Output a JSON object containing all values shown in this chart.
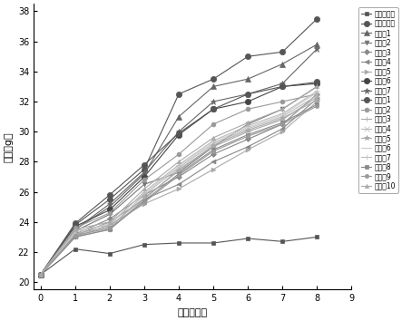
{
  "title": "",
  "xlabel": "时间（周）",
  "ylabel": "体重（g）",
  "xlim": [
    -0.2,
    9
  ],
  "ylim": [
    19.5,
    38.5
  ],
  "xticks": [
    0,
    1,
    2,
    3,
    4,
    5,
    6,
    7,
    8,
    9
  ],
  "yticks": [
    20,
    22,
    24,
    26,
    28,
    30,
    32,
    34,
    36,
    38
  ],
  "series": [
    {
      "label": "正常对照组",
      "data": [
        20.5,
        22.2,
        21.9,
        22.5,
        22.6,
        22.6,
        22.9,
        22.7,
        23.0
      ],
      "color": "#555555",
      "marker": "s",
      "markersize": 3.5,
      "linewidth": 0.8,
      "markerfacecolor": "#555555"
    },
    {
      "label": "高脂饮食组",
      "data": [
        20.5,
        23.8,
        25.5,
        27.5,
        32.5,
        33.5,
        35.0,
        35.3,
        37.5
      ],
      "color": "#555555",
      "marker": "o",
      "markersize": 4.5,
      "linewidth": 0.8,
      "markerfacecolor": "#555555"
    },
    {
      "label": "实施例1",
      "data": [
        20.5,
        23.5,
        25.0,
        27.2,
        31.0,
        33.0,
        33.5,
        34.5,
        35.8
      ],
      "color": "#666666",
      "marker": "^",
      "markersize": 4,
      "linewidth": 0.8,
      "markerfacecolor": "#666666"
    },
    {
      "label": "实施例2",
      "data": [
        20.5,
        23.4,
        24.5,
        26.5,
        27.3,
        29.0,
        30.5,
        31.5,
        33.0
      ],
      "color": "#777777",
      "marker": "v",
      "markersize": 3.5,
      "linewidth": 0.8,
      "markerfacecolor": "#777777"
    },
    {
      "label": "实施例3",
      "data": [
        20.5,
        23.2,
        24.2,
        25.8,
        27.0,
        28.5,
        29.5,
        30.5,
        32.5
      ],
      "color": "#888888",
      "marker": "D",
      "markersize": 3,
      "linewidth": 0.8,
      "markerfacecolor": "#888888"
    },
    {
      "label": "实施例4",
      "data": [
        20.5,
        23.1,
        24.0,
        25.5,
        26.5,
        28.0,
        29.0,
        30.2,
        32.2
      ],
      "color": "#888888",
      "marker": "<",
      "markersize": 3.5,
      "linewidth": 0.8,
      "markerfacecolor": "#888888"
    },
    {
      "label": "实施例5",
      "data": [
        20.5,
        23.0,
        23.8,
        25.2,
        26.2,
        27.5,
        28.8,
        30.0,
        32.0
      ],
      "color": "#aaaaaa",
      "marker": ">",
      "markersize": 3.5,
      "linewidth": 0.8,
      "markerfacecolor": "#aaaaaa"
    },
    {
      "label": "实施例6",
      "data": [
        20.5,
        23.7,
        24.8,
        27.0,
        29.8,
        31.5,
        32.0,
        33.0,
        33.2
      ],
      "color": "#444444",
      "marker": "o",
      "markersize": 4.5,
      "linewidth": 0.8,
      "markerfacecolor": "#444444"
    },
    {
      "label": "实施例7",
      "data": [
        20.5,
        23.5,
        25.2,
        27.3,
        30.0,
        32.0,
        32.5,
        33.2,
        35.5
      ],
      "color": "#666666",
      "marker": "*",
      "markersize": 5,
      "linewidth": 0.8,
      "markerfacecolor": "#666666"
    },
    {
      "label": "对比例1",
      "data": [
        20.5,
        23.9,
        25.8,
        27.8,
        29.9,
        31.5,
        32.5,
        33.0,
        33.3
      ],
      "color": "#555555",
      "marker": "o",
      "markersize": 4.5,
      "linewidth": 0.8,
      "markerfacecolor": "#555555"
    },
    {
      "label": "对比例2",
      "data": [
        20.5,
        23.6,
        24.6,
        26.8,
        28.5,
        30.5,
        31.5,
        32.0,
        32.5
      ],
      "color": "#999999",
      "marker": "o",
      "markersize": 3.5,
      "linewidth": 0.8,
      "markerfacecolor": "#999999"
    },
    {
      "label": "对比例3",
      "data": [
        20.5,
        23.0,
        23.5,
        25.5,
        27.5,
        29.0,
        30.0,
        30.8,
        32.3
      ],
      "color": "#aaaaaa",
      "marker": "+",
      "markersize": 4,
      "linewidth": 0.8,
      "markerfacecolor": "#aaaaaa"
    },
    {
      "label": "对比例4",
      "data": [
        20.5,
        23.1,
        23.6,
        25.8,
        27.6,
        29.2,
        30.2,
        31.0,
        32.4
      ],
      "color": "#bbbbbb",
      "marker": "x",
      "markersize": 4,
      "linewidth": 0.8,
      "markerfacecolor": "#bbbbbb"
    },
    {
      "label": "对比例5",
      "data": [
        20.5,
        23.2,
        23.7,
        25.6,
        27.4,
        29.1,
        30.1,
        30.9,
        32.1
      ],
      "color": "#aaaaaa",
      "marker": "*",
      "markersize": 4,
      "linewidth": 0.8,
      "markerfacecolor": "#aaaaaa"
    },
    {
      "label": "对比例6",
      "data": [
        20.5,
        23.3,
        23.9,
        25.9,
        27.7,
        29.3,
        30.3,
        31.1,
        32.6
      ],
      "color": "#cccccc",
      "marker": "None",
      "markersize": 4,
      "linewidth": 0.8,
      "markerfacecolor": "#cccccc"
    },
    {
      "label": "对比例7",
      "data": [
        20.5,
        23.4,
        23.8,
        26.0,
        27.8,
        29.4,
        30.4,
        31.2,
        32.7
      ],
      "color": "#bbbbbb",
      "marker": "+",
      "markersize": 4,
      "linewidth": 0.8,
      "markerfacecolor": "#bbbbbb"
    },
    {
      "label": "对比例8",
      "data": [
        20.5,
        23.0,
        23.5,
        25.4,
        27.2,
        28.8,
        29.8,
        30.6,
        31.8
      ],
      "color": "#888888",
      "marker": "s",
      "markersize": 3,
      "linewidth": 0.8,
      "markerfacecolor": "#888888"
    },
    {
      "label": "对比例9",
      "data": [
        20.5,
        23.1,
        23.6,
        25.3,
        27.1,
        28.7,
        29.7,
        30.5,
        31.7
      ],
      "color": "#999999",
      "marker": "o",
      "markersize": 3,
      "linewidth": 0.8,
      "markerfacecolor": "#999999"
    },
    {
      "label": "对比例10",
      "data": [
        20.5,
        23.5,
        24.0,
        26.2,
        28.0,
        29.6,
        30.6,
        31.5,
        33.0
      ],
      "color": "#aaaaaa",
      "marker": "^",
      "markersize": 3,
      "linewidth": 0.8,
      "markerfacecolor": "#aaaaaa"
    }
  ],
  "legend_fontsize": 5.5,
  "axis_fontsize": 8,
  "tick_fontsize": 7,
  "background_color": "#ffffff",
  "figsize": [
    4.43,
    3.54
  ],
  "dpi": 100
}
